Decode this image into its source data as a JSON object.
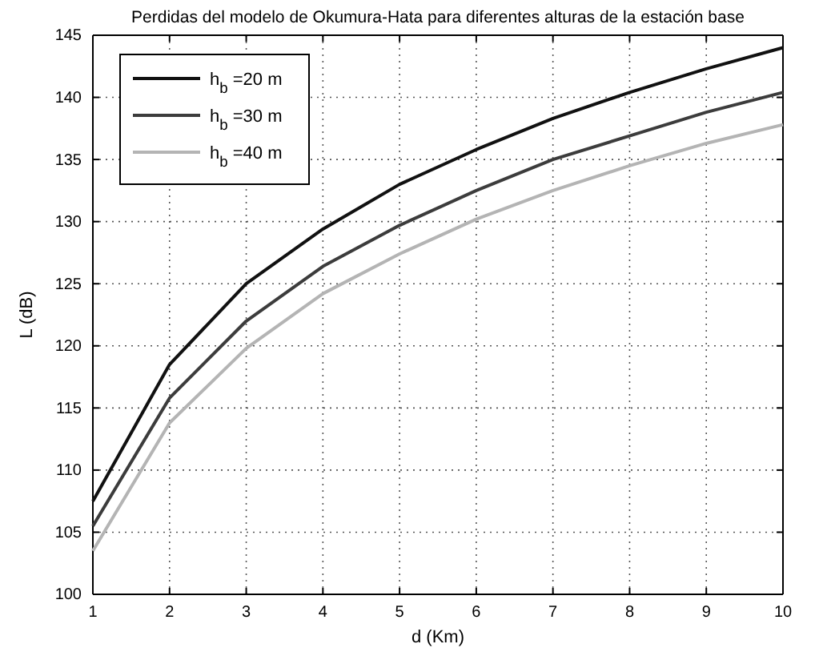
{
  "chart_data": {
    "type": "line",
    "title": "Perdidas del modelo de Okumura-Hata para diferentes alturas de la estación base",
    "xlabel": "d (Km)",
    "ylabel": "L (dB)",
    "x": [
      1,
      2,
      3,
      4,
      5,
      6,
      7,
      8,
      9,
      10
    ],
    "series": [
      {
        "name": "h$_{b}$ =20 m",
        "color": "#111111",
        "values": [
          107.5,
          118.5,
          125,
          129.4,
          133,
          135.8,
          138.3,
          140.4,
          142.3,
          144
        ]
      },
      {
        "name": "h$_{b}$ =30 m",
        "color": "#3c3c3c",
        "values": [
          105.5,
          115.8,
          122,
          126.4,
          129.7,
          132.5,
          135,
          136.9,
          138.8,
          140.4
        ]
      },
      {
        "name": "h$_{b}$ =40 m",
        "color": "#b4b4b4",
        "values": [
          103.5,
          113.8,
          119.8,
          124.2,
          127.4,
          130.2,
          132.5,
          134.5,
          136.3,
          137.8
        ]
      }
    ],
    "xlim": [
      1,
      10
    ],
    "ylim": [
      100,
      145
    ],
    "xticks": [
      1,
      2,
      3,
      4,
      5,
      6,
      7,
      8,
      9,
      10
    ],
    "yticks": [
      100,
      105,
      110,
      115,
      120,
      125,
      130,
      135,
      140,
      145
    ],
    "grid": true,
    "legend": "top left",
    "line_style": "solid",
    "marker": "none"
  }
}
